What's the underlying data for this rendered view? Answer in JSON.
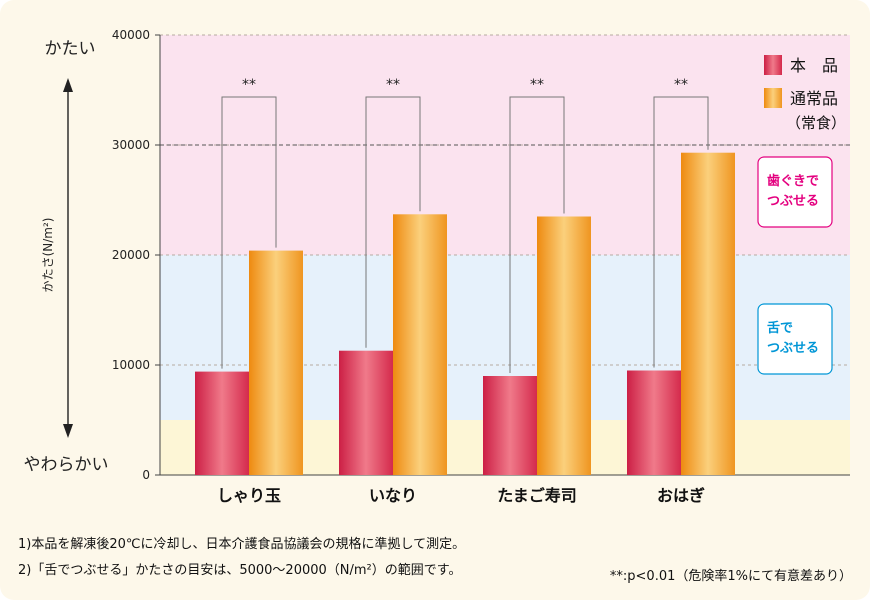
{
  "chart_data": {
    "type": "bar",
    "categories": [
      "しゃり玉",
      "いなり",
      "たまご寿司",
      "おはぎ"
    ],
    "series": [
      {
        "name": "本　品",
        "values": [
          9400,
          11300,
          9000,
          9500
        ],
        "color": "#e03f5d"
      },
      {
        "name": "通常品",
        "values": [
          20400,
          23700,
          23500,
          29300
        ],
        "color": "#f2a02a"
      }
    ],
    "legend_sub": "（常食）",
    "legend_position": "top-right",
    "ylabel": "かたさ(N/m²)",
    "ylim": [
      0,
      40000
    ],
    "yticks": [
      0,
      10000,
      20000,
      30000,
      40000
    ],
    "y_top_word": "かたい",
    "y_bottom_word": "やわらかい",
    "significance": "**",
    "dashed_line_at": 30000,
    "zones": [
      {
        "from": 20000,
        "to": 40000,
        "color": "#fbe3ef"
      },
      {
        "from": 5000,
        "to": 20000,
        "color": "#e6f1fb"
      },
      {
        "from": 0,
        "to": 5000,
        "color": "#fdf6d6"
      }
    ],
    "zone_labels": [
      {
        "line1": "歯ぐきで",
        "line2": "つぶせる",
        "color": "#e4007f"
      },
      {
        "line1": "舌で",
        "line2": "つぶせる",
        "color": "#0096d6"
      }
    ],
    "footnotes": [
      "1)本品を解凍後20℃に冷却し、日本介護食品協議会の規格に準拠して測定。",
      "2)「舌でつぶせる」かたさの目安は、5000〜20000（N/m²）の範囲です。"
    ],
    "significance_note": "**:p<0.01（危険率1%にて有意差あり）"
  }
}
